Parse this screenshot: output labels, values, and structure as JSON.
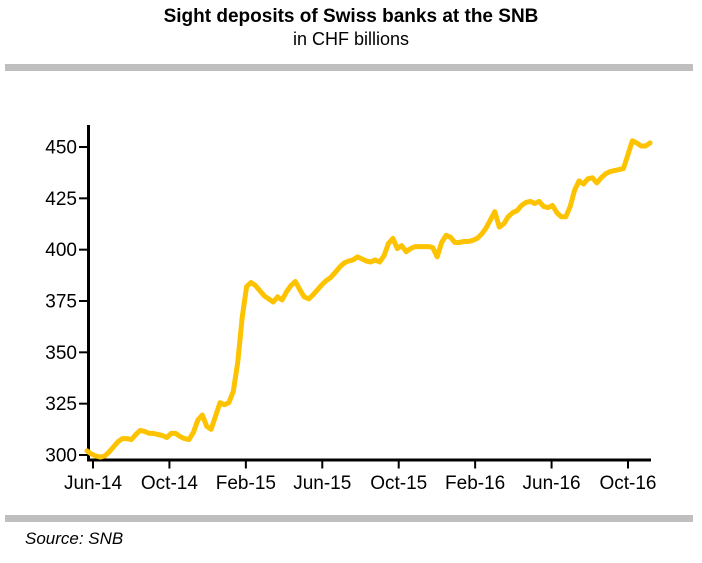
{
  "header": {
    "title": "Sight deposits of Swiss banks at the SNB",
    "subtitle": "in CHF billions"
  },
  "footer": {
    "source": "Source: SNB"
  },
  "colors": {
    "line": "#FDC300",
    "divider": "#BFBFBF",
    "axis": "#000000",
    "background": "#FFFFFF"
  },
  "chart_data": {
    "type": "line",
    "title": "Sight deposits of Swiss banks at the SNB",
    "subtitle": "in CHF billions",
    "xlabel": "",
    "ylabel": "CHF billions",
    "series_name": "Sight deposits of Swiss banks at the SNB",
    "frequency": "weekly",
    "x_range": [
      "Jun-2014",
      "Nov-2016"
    ],
    "x_tick_labels": [
      "Jun-14",
      "Oct-14",
      "Feb-15",
      "Jun-15",
      "Oct-15",
      "Feb-16",
      "Jun-16",
      "Oct-16"
    ],
    "y_ticks": [
      300,
      325,
      350,
      375,
      400,
      425,
      450
    ],
    "ylim": [
      300,
      460
    ],
    "grid": false,
    "legend": "none",
    "values": [
      302,
      300.5,
      299.5,
      299,
      299.5,
      301.5,
      304,
      306.5,
      308,
      308,
      307.5,
      310,
      312,
      311.5,
      310.5,
      310.5,
      310,
      309.5,
      308.5,
      310.5,
      310.5,
      309,
      308,
      307.5,
      311,
      317,
      319.5,
      314,
      312.5,
      319,
      325.5,
      324.5,
      325.5,
      331,
      345,
      367,
      382,
      384,
      382.5,
      380,
      377.5,
      376,
      374.5,
      377,
      375.5,
      379.5,
      382.5,
      384.5,
      380.5,
      377,
      376,
      378,
      380.5,
      383,
      385,
      386.5,
      389,
      391.5,
      393.5,
      394.5,
      395,
      396.5,
      395.5,
      394.5,
      394,
      395,
      394,
      397,
      403,
      405.5,
      400.5,
      402,
      399,
      400.5,
      401.5,
      401.5,
      401.5,
      401.5,
      401,
      396.5,
      403.5,
      407,
      406,
      403.5,
      403.5,
      404,
      404,
      404.5,
      405.5,
      407.5,
      410.5,
      414.5,
      418.5,
      411,
      412.5,
      416,
      418,
      419,
      421.5,
      423,
      423.5,
      422.5,
      423.5,
      421,
      420.5,
      421.5,
      418,
      416,
      416,
      421,
      429,
      433.5,
      432,
      434.5,
      435,
      432.5,
      435,
      437,
      438,
      438.5,
      439,
      439.5,
      446,
      453,
      452,
      450.5,
      450.5,
      452
    ]
  }
}
